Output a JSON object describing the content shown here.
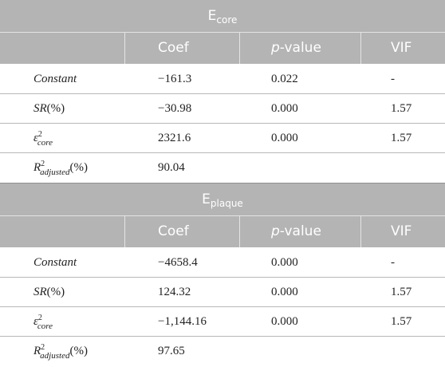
{
  "tables": [
    {
      "title_main": "E",
      "title_sub": "core",
      "headers": {
        "col0": "",
        "coef": "Coef",
        "p_italic": "p",
        "p_rest": "-value",
        "vif": "VIF"
      },
      "rows": [
        {
          "label": "Constant",
          "coef": "−161.3",
          "p": "0.022",
          "vif": "-"
        },
        {
          "label_a": "SR",
          "label_b": "(%)",
          "coef": "−30.98",
          "p": "0.000",
          "vif": "1.57"
        },
        {
          "label_a": "ε",
          "label_sup": "2",
          "label_sub": "core",
          "coef": "2321.6",
          "p": "0.000",
          "vif": "1.57"
        },
        {
          "label_a": "R",
          "label_sup": "2",
          "label_sub": "adjusted",
          "label_b": "(%)",
          "coef": "90.04",
          "p": "",
          "vif": ""
        }
      ]
    },
    {
      "title_main": "E",
      "title_sub": "plaque",
      "headers": {
        "col0": "",
        "coef": "Coef",
        "p_italic": "p",
        "p_rest": "-value",
        "vif": "VIF"
      },
      "rows": [
        {
          "label": "Constant",
          "coef": "−4658.4",
          "p": "0.000",
          "vif": "-"
        },
        {
          "label_a": "SR",
          "label_b": "(%)",
          "coef": "124.32",
          "p": "0.000",
          "vif": "1.57"
        },
        {
          "label_a": "ε",
          "label_sup": "2",
          "label_sub": "core",
          "coef": "−1,144.16",
          "p": "0.000",
          "vif": "1.57"
        },
        {
          "label_a": "R",
          "label_sup": "2",
          "label_sub": "adjusted",
          "label_b": "(%)",
          "coef": "97.65",
          "p": "",
          "vif": ""
        }
      ]
    }
  ]
}
